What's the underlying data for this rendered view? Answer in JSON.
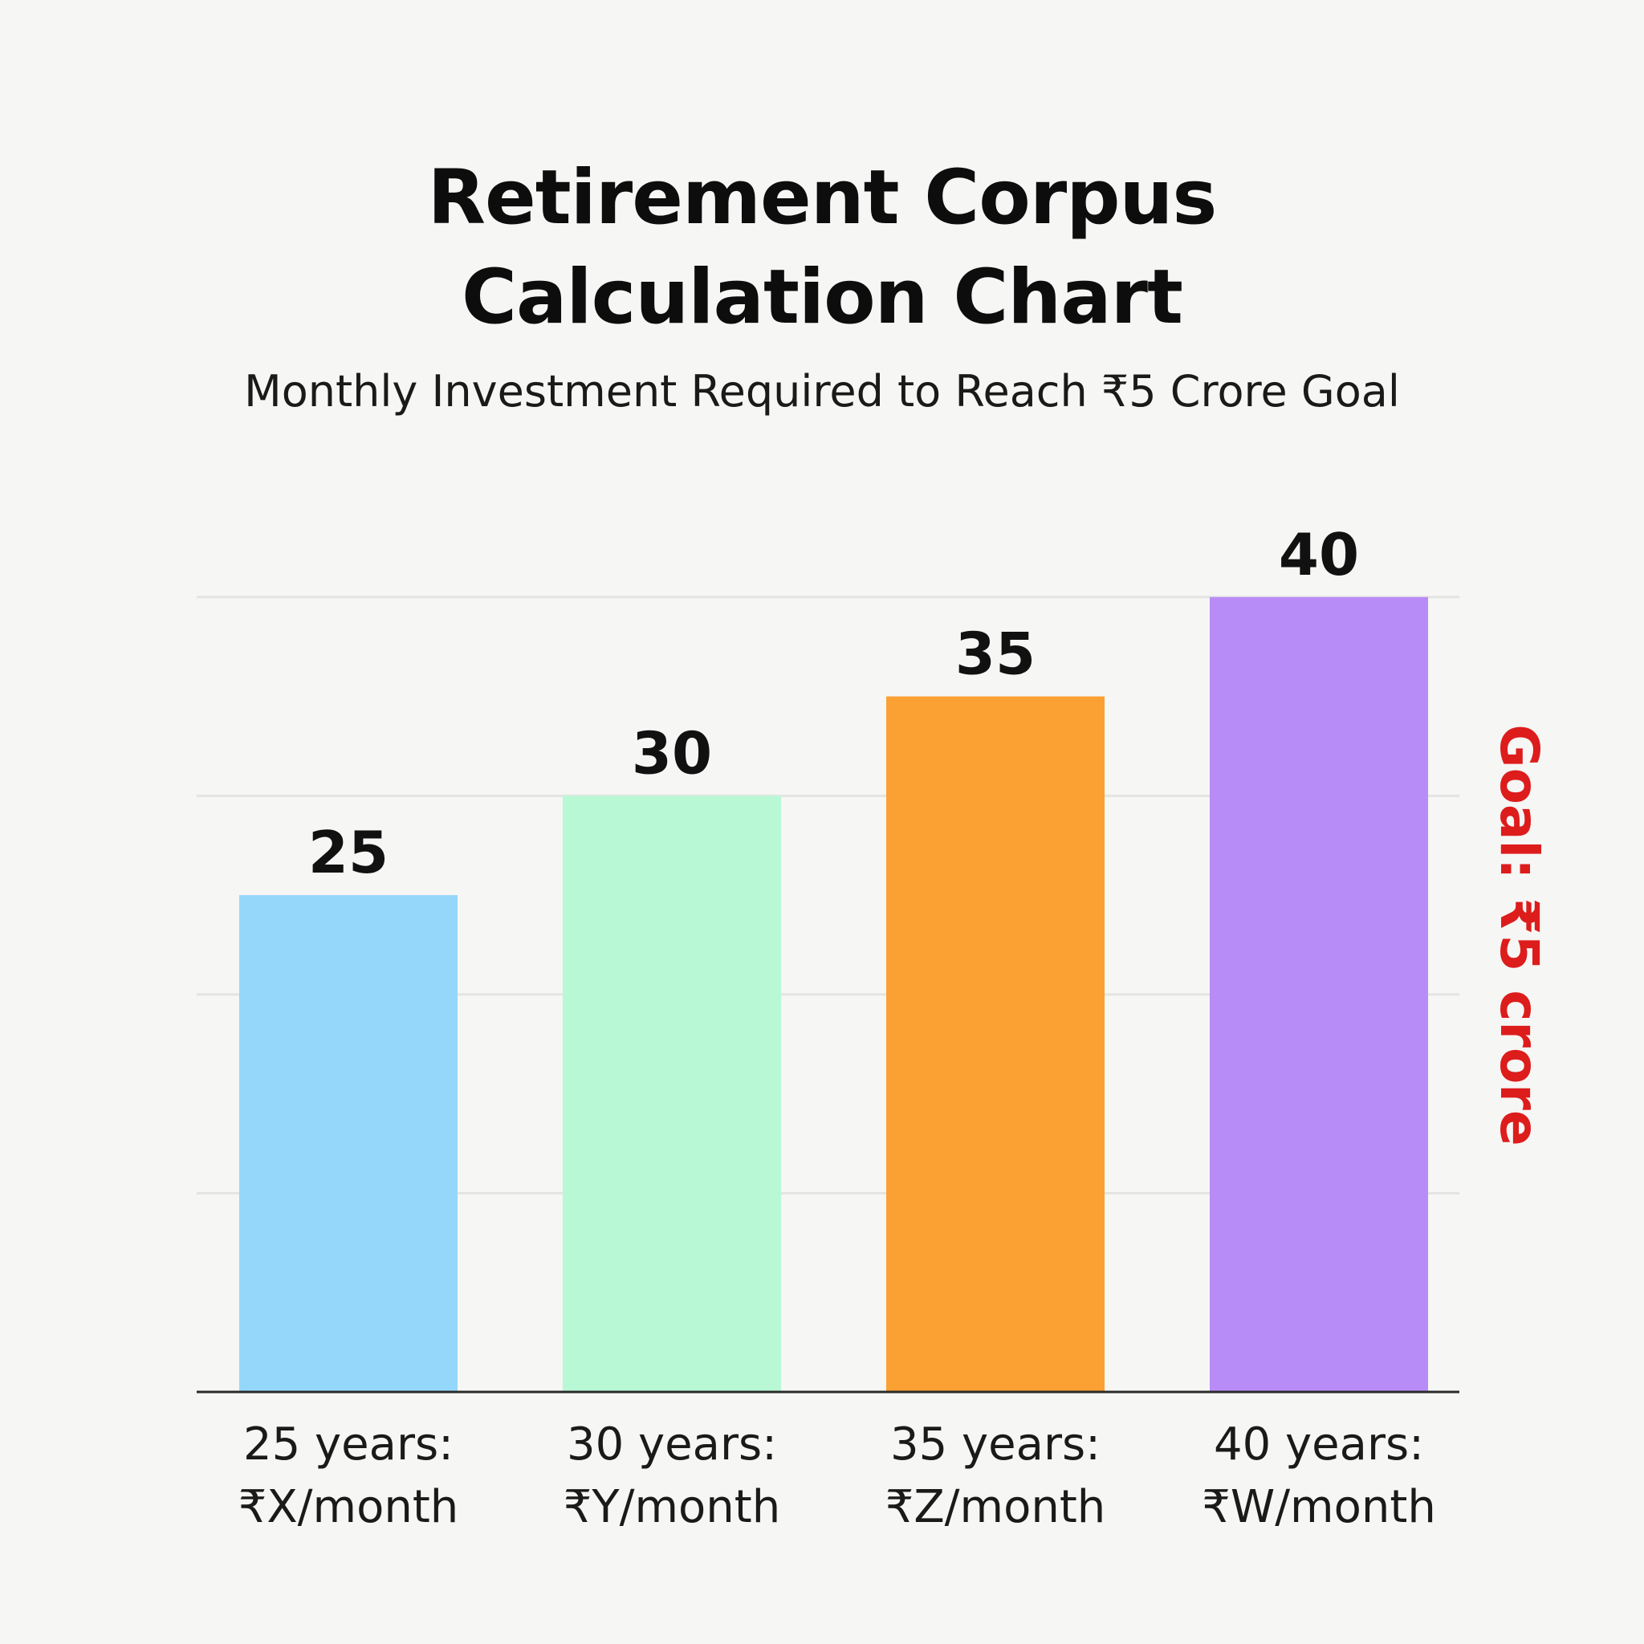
{
  "chart_data": {
    "type": "bar",
    "title_lines": [
      "Retirement Corpus",
      "Calculation Chart"
    ],
    "subtitle": "Monthly Investment Required to Reach ₹5 Crore Goal",
    "categories": [
      [
        "25 years:",
        "₹X/month"
      ],
      [
        "30 years:",
        "₹Y/month"
      ],
      [
        "35 years:",
        "₹Z/month"
      ],
      [
        "40 years:",
        "₹W/month"
      ]
    ],
    "values": [
      25,
      30,
      35,
      40
    ],
    "data_labels": [
      "25",
      "30",
      "35",
      "40"
    ],
    "bar_colors": [
      "#95d7fa",
      "#b9f8d5",
      "#fba033",
      "#b88cf6"
    ],
    "ylim": [
      0,
      45
    ],
    "gridlines": [
      10,
      20,
      30,
      40
    ],
    "grid": true,
    "goal_label": {
      "text": "Goal: ₹5 crore",
      "color": "#dd1c1c",
      "orientation": "vertical"
    }
  }
}
